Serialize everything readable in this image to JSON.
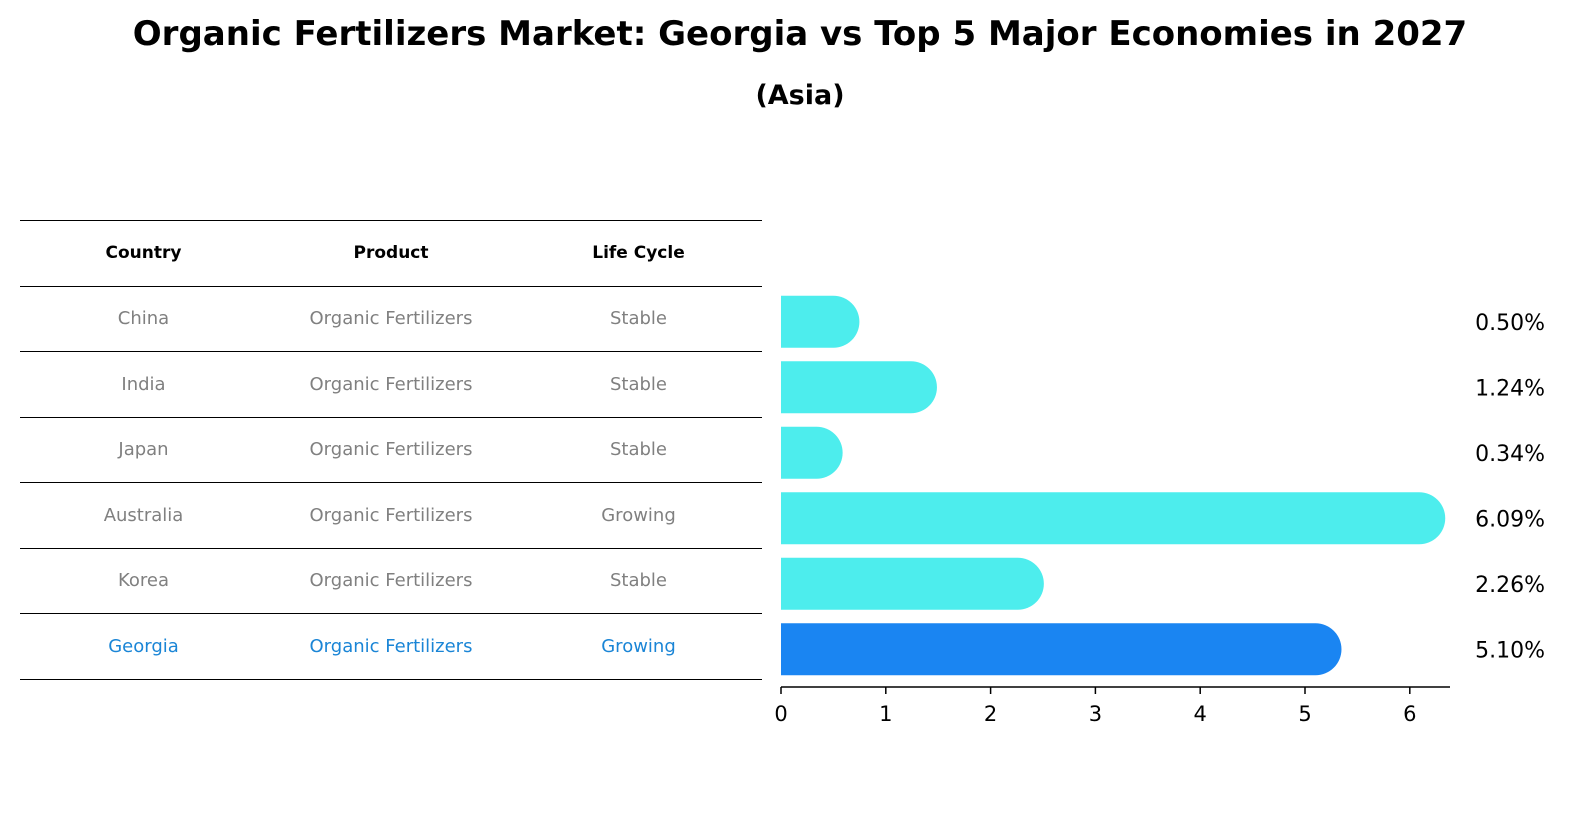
{
  "title": "Organic Fertilizers Market: Georgia vs Top 5 Major Economies in 2027",
  "subtitle": "(Asia)",
  "colors": {
    "bar": "#4deded",
    "highlight": "#1a85f2",
    "highlight_text": "#1a85d6",
    "muted_text": "#808080"
  },
  "table": {
    "headers": [
      "Country",
      "Product",
      "Life Cycle"
    ],
    "rows": [
      [
        "China",
        "Organic Fertilizers",
        "Stable"
      ],
      [
        "India",
        "Organic Fertilizers",
        "Stable"
      ],
      [
        "Japan",
        "Organic Fertilizers",
        "Stable"
      ],
      [
        "Australia",
        "Organic Fertilizers",
        "Growing"
      ],
      [
        "Korea",
        "Organic Fertilizers",
        "Stable"
      ],
      [
        "Georgia",
        "Organic Fertilizers",
        "Growing"
      ]
    ],
    "highlight_row": 5
  },
  "chart_data": {
    "type": "bar",
    "orientation": "horizontal",
    "categories": [
      "China",
      "India",
      "Japan",
      "Australia",
      "Korea",
      "Georgia"
    ],
    "values": [
      0.5,
      1.24,
      0.34,
      6.09,
      2.26,
      5.1
    ],
    "value_labels": [
      "0.50%",
      "1.24%",
      "0.34%",
      "6.09%",
      "2.26%",
      "5.10%"
    ],
    "highlight": "Georgia",
    "xlim": [
      0,
      6.4
    ],
    "xticks": [
      0,
      1,
      2,
      3,
      4,
      5,
      6
    ],
    "xlabel": "",
    "ylabel": ""
  }
}
